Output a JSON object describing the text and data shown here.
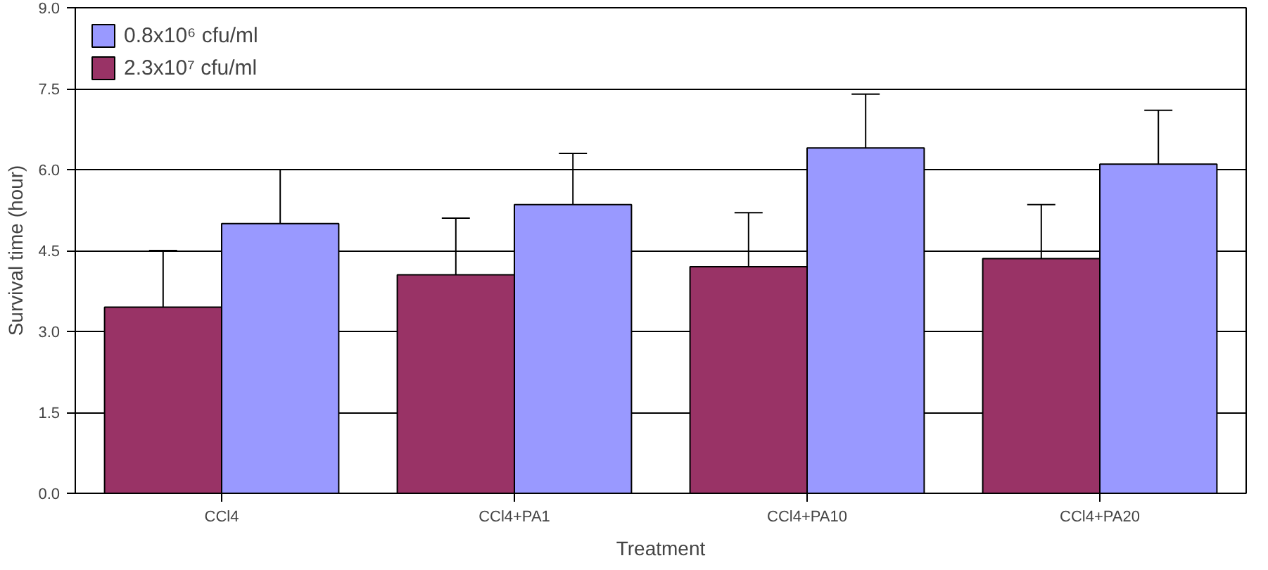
{
  "chart_data": {
    "type": "bar",
    "xlabel": "Treatment",
    "ylabel": "Survival time (hour)",
    "categories": [
      "CCl4",
      "CCl4+PA1",
      "CCl4+PA10",
      "CCl4+PA20"
    ],
    "series": [
      {
        "name": "2.3x10⁷ cfu/ml",
        "color": "#993366",
        "values": [
          3.45,
          4.05,
          4.2,
          4.35
        ],
        "errors": [
          [
            3.45,
            4.5
          ],
          [
            4.05,
            5.1
          ],
          [
            4.2,
            5.2
          ],
          [
            4.35,
            5.35
          ]
        ]
      },
      {
        "name": "0.8x10⁶ cfu/ml",
        "color": "#9999ff",
        "values": [
          5.0,
          5.35,
          6.4,
          6.1
        ],
        "errors": [
          [
            5.0,
            6.0
          ],
          [
            5.35,
            6.3
          ],
          [
            6.4,
            7.4
          ],
          [
            6.1,
            7.1
          ]
        ]
      }
    ],
    "ylim": [
      0,
      9
    ],
    "yticks": [
      {
        "value": 0,
        "label": "0.0"
      },
      {
        "value": 1.5,
        "label": "1.5"
      },
      {
        "value": 3,
        "label": "3.0"
      },
      {
        "value": 4.5,
        "label": "4.5"
      },
      {
        "value": 6,
        "label": "6.0"
      },
      {
        "value": 7.5,
        "label": "7.5"
      },
      {
        "value": 9,
        "label": "9.0"
      }
    ],
    "grid": "y",
    "legend": "top left"
  }
}
